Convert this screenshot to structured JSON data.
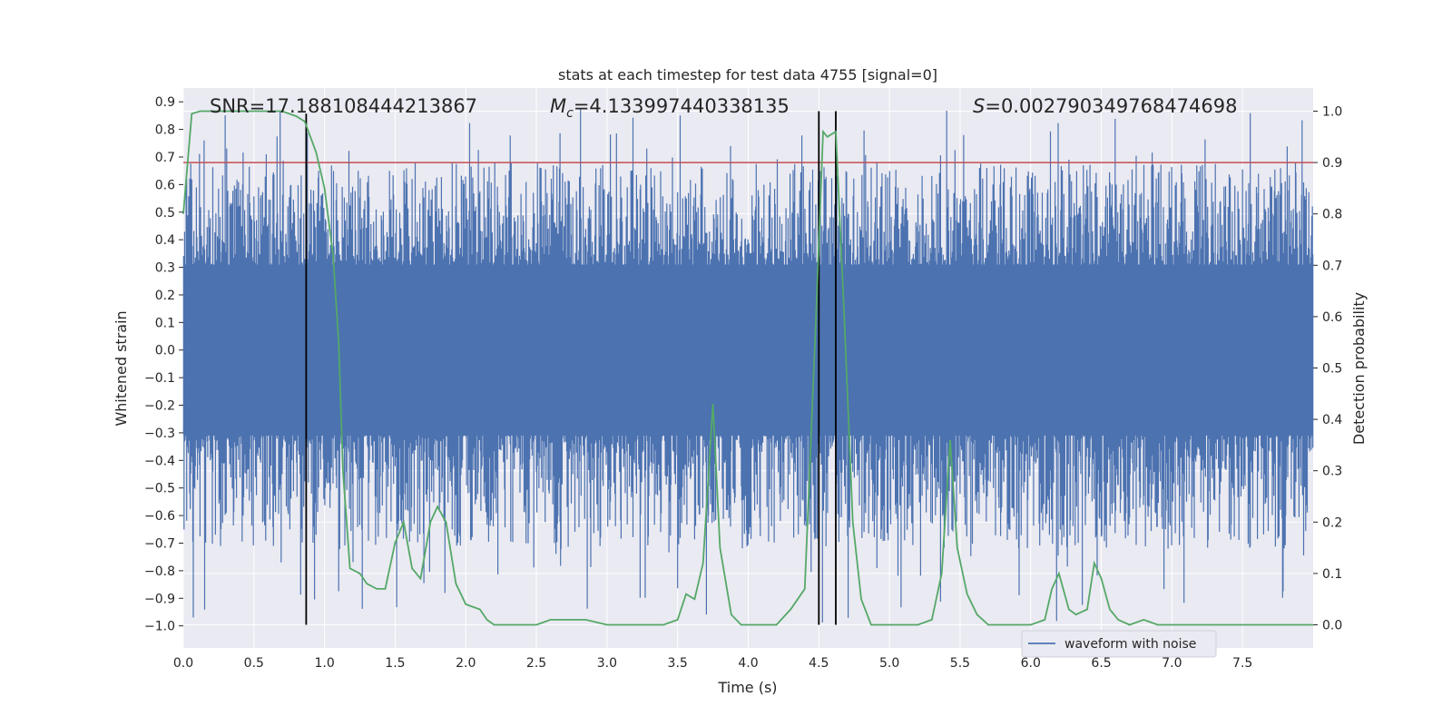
{
  "chart_data": {
    "type": "line",
    "title": "stats at each timestep for test data 4755 [signal=0]",
    "xlabel": "Time (s)",
    "ylabel": "Whitened strain",
    "y2label": "Detection probability",
    "xlim": [
      0.0,
      8.0
    ],
    "ylim": [
      -1.08,
      0.95
    ],
    "y2lim": [
      -0.045,
      1.045
    ],
    "grid": true,
    "x_ticks": [
      "0.0",
      "0.5",
      "1.0",
      "1.5",
      "2.0",
      "2.5",
      "3.0",
      "3.5",
      "4.0",
      "4.5",
      "5.0",
      "5.5",
      "6.0",
      "6.5",
      "7.0",
      "7.5"
    ],
    "y_ticks": [
      "0.9",
      "0.8",
      "0.7",
      "0.6",
      "0.5",
      "0.4",
      "0.3",
      "0.2",
      "0.1",
      "0.0",
      "−0.1",
      "−0.2",
      "−0.3",
      "−0.4",
      "−0.5",
      "−0.6",
      "−0.7",
      "−0.8",
      "−0.9",
      "−1.0"
    ],
    "y2_ticks": [
      "1.0",
      "0.9",
      "0.8",
      "0.7",
      "0.6",
      "0.5",
      "0.4",
      "0.3",
      "0.2",
      "0.1",
      "0.0"
    ],
    "annotations": {
      "snr": "SNR=17.188108444213867",
      "mc_symbol": "M",
      "mc_sub": "c",
      "mc_value": "=4.133997440338135",
      "s_symbol": "S",
      "s_value": "=0.002790349768474698"
    },
    "threshold_line": {
      "y2": 0.9,
      "color": "#c44e52"
    },
    "vertical_lines": [
      0.87,
      4.5,
      4.62
    ],
    "legend": {
      "position": "bottom-right",
      "entries": [
        "waveform with noise"
      ]
    },
    "series": [
      {
        "name": "waveform with noise",
        "axis": "left",
        "color": "#4c72b0",
        "kind": "noise",
        "core_amplitude": 0.31,
        "spike_max": 0.88,
        "spike_min": -0.99
      },
      {
        "name": "detection probability",
        "axis": "right",
        "color": "#55a868",
        "x": [
          0.0,
          0.06,
          0.12,
          0.25,
          0.4,
          0.55,
          0.7,
          0.8,
          0.86,
          0.94,
          1.0,
          1.06,
          1.1,
          1.13,
          1.18,
          1.25,
          1.3,
          1.37,
          1.43,
          1.5,
          1.56,
          1.62,
          1.68,
          1.75,
          1.8,
          1.86,
          1.93,
          2.0,
          2.1,
          2.15,
          2.2,
          2.3,
          2.5,
          2.6,
          2.7,
          2.85,
          3.0,
          3.2,
          3.4,
          3.5,
          3.56,
          3.62,
          3.68,
          3.75,
          3.8,
          3.88,
          3.95,
          4.2,
          4.3,
          4.4,
          4.48,
          4.53,
          4.56,
          4.62,
          4.68,
          4.74,
          4.8,
          4.87,
          5.0,
          5.2,
          5.3,
          5.37,
          5.43,
          5.48,
          5.55,
          5.62,
          5.7,
          5.8,
          6.0,
          6.1,
          6.15,
          6.2,
          6.27,
          6.32,
          6.4,
          6.45,
          6.5,
          6.56,
          6.62,
          6.7,
          6.8,
          6.9,
          7.0,
          7.5,
          7.9,
          8.0
        ],
        "y": [
          0.8,
          0.995,
          1.0,
          1.0,
          1.0,
          1.0,
          1.0,
          0.99,
          0.98,
          0.92,
          0.85,
          0.72,
          0.55,
          0.3,
          0.11,
          0.1,
          0.08,
          0.07,
          0.07,
          0.16,
          0.2,
          0.11,
          0.09,
          0.2,
          0.23,
          0.2,
          0.08,
          0.04,
          0.03,
          0.01,
          0.0,
          0.0,
          0.0,
          0.01,
          0.01,
          0.01,
          0.0,
          0.0,
          0.0,
          0.01,
          0.06,
          0.05,
          0.12,
          0.43,
          0.15,
          0.02,
          0.0,
          0.0,
          0.03,
          0.07,
          0.6,
          0.96,
          0.95,
          0.96,
          0.6,
          0.2,
          0.05,
          0.0,
          0.0,
          0.0,
          0.01,
          0.1,
          0.36,
          0.15,
          0.06,
          0.02,
          0.0,
          0.0,
          0.0,
          0.01,
          0.07,
          0.1,
          0.03,
          0.02,
          0.03,
          0.12,
          0.09,
          0.03,
          0.01,
          0.0,
          0.01,
          0.0,
          0.0,
          0.0,
          0.0,
          0.0
        ]
      }
    ]
  }
}
